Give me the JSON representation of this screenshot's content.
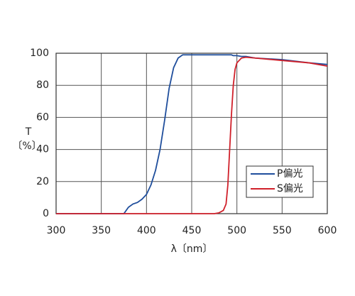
{
  "chart_data": {
    "type": "line",
    "x": [
      300,
      350,
      370,
      375,
      380,
      385,
      390,
      395,
      400,
      405,
      410,
      415,
      420,
      425,
      430,
      435,
      440,
      450,
      460,
      470,
      475,
      480,
      485,
      488,
      490,
      492,
      494,
      496,
      498,
      500,
      505,
      510,
      520,
      550,
      580,
      600
    ],
    "series": [
      {
        "name": "P偏光",
        "color": "#1f4e9c",
        "values": [
          0,
          0,
          0,
          0,
          4,
          6,
          7,
          9,
          12,
          18,
          27,
          40,
          58,
          78,
          91,
          97,
          99,
          99,
          99,
          99,
          99,
          99,
          99,
          99,
          99,
          99,
          99,
          98.5,
          98.5,
          98.5,
          98,
          98,
          97,
          96,
          94,
          93
        ]
      },
      {
        "name": "S偏光",
        "color": "#d0202a",
        "values": [
          0,
          0,
          0,
          0,
          0,
          0,
          0,
          0,
          0,
          0,
          0,
          0,
          0,
          0,
          0,
          0,
          0,
          0,
          0,
          0,
          0,
          0.5,
          2,
          6,
          18,
          40,
          62,
          80,
          90,
          94,
          97,
          97.5,
          97,
          95.5,
          94,
          92
        ]
      }
    ],
    "xlim": [
      300,
      600
    ],
    "xticks": [
      300,
      350,
      400,
      450,
      500,
      550,
      600
    ],
    "ylim": [
      0,
      100
    ],
    "yticks": [
      0,
      20,
      40,
      60,
      80,
      100
    ],
    "xlabel": "λ〔nm〕",
    "ylabel": [
      "T",
      "〔%〕"
    ],
    "grid": true,
    "legend": "lower right"
  }
}
